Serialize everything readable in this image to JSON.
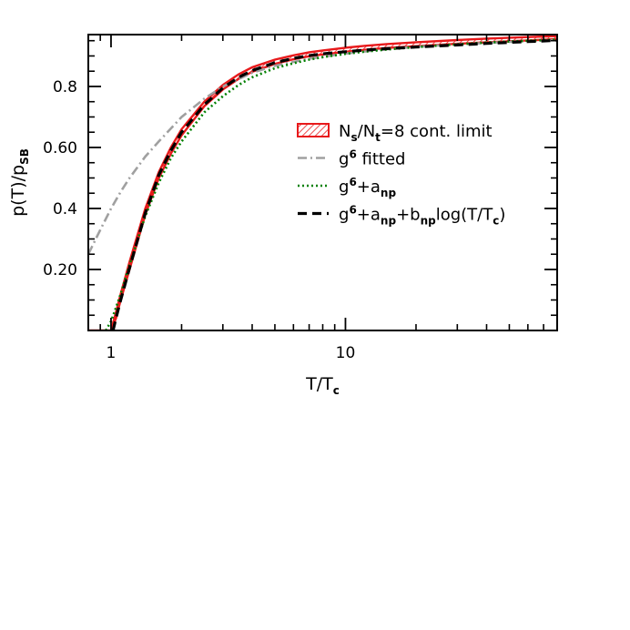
{
  "chart_data": {
    "type": "line",
    "title": "",
    "xlabel": {
      "base": "T/T",
      "sub": "c"
    },
    "ylabel": {
      "base": "p(T)/p",
      "sub": "SB"
    },
    "xscale": "log",
    "xlim": [
      0.8,
      80
    ],
    "ylim": [
      0.0,
      0.97
    ],
    "x_ticks": [
      {
        "value": 1,
        "label": "1"
      },
      {
        "value": 10,
        "label": "10"
      }
    ],
    "y_ticks": [
      {
        "value": 0.2,
        "label": "0.20"
      },
      {
        "value": 0.4,
        "label": "0.4"
      },
      {
        "value": 0.6,
        "label": "0.60"
      },
      {
        "value": 0.8,
        "label": "0.8"
      }
    ],
    "grid": false,
    "legend_position": "right",
    "series": [
      {
        "key": "band",
        "style": "hatched-band",
        "color": "#e8191b",
        "x": [
          0.8,
          0.95,
          1.0,
          1.05,
          1.1,
          1.2,
          1.4,
          1.6,
          1.8,
          2.0,
          2.5,
          3.0,
          3.5,
          4.0,
          5.0,
          6.0,
          7.0,
          8.0,
          10.0,
          12.0,
          15.0,
          20.0,
          30.0,
          40.0,
          60.0,
          80.0
        ],
        "y_low": [
          0.0,
          0.0,
          0.0,
          0.04,
          0.1,
          0.2,
          0.38,
          0.5,
          0.58,
          0.64,
          0.735,
          0.79,
          0.825,
          0.848,
          0.874,
          0.889,
          0.899,
          0.905,
          0.914,
          0.92,
          0.926,
          0.932,
          0.94,
          0.945,
          0.951,
          0.955
        ],
        "y_high": [
          0.0,
          0.0,
          0.0,
          0.06,
          0.12,
          0.225,
          0.4,
          0.52,
          0.6,
          0.66,
          0.75,
          0.805,
          0.84,
          0.863,
          0.888,
          0.902,
          0.912,
          0.918,
          0.927,
          0.933,
          0.939,
          0.945,
          0.952,
          0.957,
          0.962,
          0.965
        ],
        "legend": {
          "parts": [
            {
              "t": "N"
            },
            {
              "t": "s",
              "s": "sub"
            },
            {
              "t": "/N"
            },
            {
              "t": "t",
              "s": "sub"
            },
            {
              "t": "=8 cont. limit"
            }
          ]
        }
      },
      {
        "key": "g6fit",
        "style": "dash-dot",
        "color": "#a0a0a0",
        "x": [
          0.8,
          0.9,
          1.0,
          1.1,
          1.2,
          1.4,
          1.6,
          2.0,
          2.5,
          3.0,
          4.0,
          5.0,
          7.0,
          10.0,
          15.0,
          20.0,
          30.0,
          50.0,
          80.0
        ],
        "y": [
          0.25,
          0.33,
          0.4,
          0.455,
          0.5,
          0.57,
          0.62,
          0.7,
          0.76,
          0.8,
          0.845,
          0.868,
          0.891,
          0.908,
          0.922,
          0.93,
          0.938,
          0.946,
          0.952
        ],
        "legend": {
          "parts": [
            {
              "t": "g"
            },
            {
              "t": "6",
              "s": "sup"
            },
            {
              "t": " fitted"
            }
          ]
        }
      },
      {
        "key": "g6anp",
        "style": "dotted",
        "color": "#008000",
        "x": [
          0.95,
          1.0,
          1.05,
          1.1,
          1.2,
          1.4,
          1.6,
          1.8,
          2.0,
          2.5,
          3.0,
          3.5,
          4.0,
          5.0,
          6.0,
          7.0,
          8.0,
          10.0,
          12.0,
          15.0,
          20.0,
          30.0,
          40.0,
          60.0,
          80.0
        ],
        "y": [
          0.0,
          0.03,
          0.075,
          0.12,
          0.215,
          0.375,
          0.485,
          0.565,
          0.62,
          0.715,
          0.768,
          0.805,
          0.83,
          0.86,
          0.876,
          0.888,
          0.896,
          0.907,
          0.914,
          0.921,
          0.929,
          0.938,
          0.944,
          0.95,
          0.954
        ],
        "legend": {
          "parts": [
            {
              "t": "g"
            },
            {
              "t": "6",
              "s": "sup"
            },
            {
              "t": "+a"
            },
            {
              "t": "np",
              "s": "sub"
            }
          ]
        }
      },
      {
        "key": "g6anpbnp",
        "style": "dashed",
        "color": "#000000",
        "x": [
          1.02,
          1.05,
          1.1,
          1.2,
          1.4,
          1.6,
          1.8,
          2.0,
          2.5,
          3.0,
          3.5,
          4.0,
          5.0,
          6.0,
          7.0,
          8.0,
          10.0,
          12.0,
          15.0,
          20.0,
          30.0,
          40.0,
          60.0,
          80.0
        ],
        "y": [
          0.0,
          0.04,
          0.1,
          0.205,
          0.385,
          0.51,
          0.59,
          0.65,
          0.74,
          0.795,
          0.83,
          0.852,
          0.878,
          0.892,
          0.901,
          0.907,
          0.914,
          0.919,
          0.924,
          0.929,
          0.936,
          0.941,
          0.947,
          0.951
        ],
        "legend": {
          "parts": [
            {
              "t": "g"
            },
            {
              "t": "6",
              "s": "sup"
            },
            {
              "t": "+a"
            },
            {
              "t": "np",
              "s": "sub"
            },
            {
              "t": "+b"
            },
            {
              "t": "np",
              "s": "sub"
            },
            {
              "t": "log(T/T"
            },
            {
              "t": "c",
              "s": "sub"
            },
            {
              "t": ")"
            }
          ]
        }
      }
    ]
  }
}
